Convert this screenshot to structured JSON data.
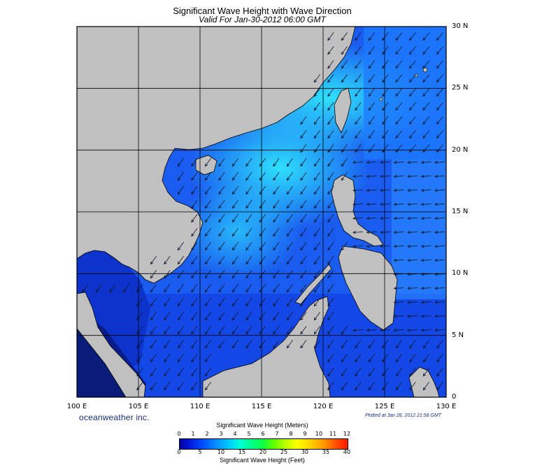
{
  "header": {
    "title": "Significant Wave Height with Wave Direction",
    "subtitle": "Valid For Jan-30-2012 06:00 GMT"
  },
  "map": {
    "lon_range": [
      100,
      130
    ],
    "lat_range": [
      0,
      30
    ],
    "lat_labels": [
      "30 N",
      "25 N",
      "20 N",
      "15 N",
      "10 N",
      "5 N",
      "0"
    ],
    "lon_labels": [
      "100 E",
      "105 E",
      "110 E",
      "115 E",
      "120 E",
      "125 E",
      "130 E"
    ],
    "land_color": "#c0c0c0",
    "grid_color": "#000000",
    "arrow_color": "#101830"
  },
  "footer": {
    "brand": "oceanweather inc.",
    "plotted": "Plotted at Jan 28, 2012 21:58 GMT"
  },
  "legend": {
    "title_meters": "Significant Wave Height (Meters)",
    "title_feet": "Significant Wave Height (Feet)",
    "meters_ticks": [
      "0",
      "1",
      "2",
      "3",
      "4",
      "5",
      "6",
      "7",
      "8",
      "9",
      "10",
      "11",
      "12"
    ],
    "feet_ticks": [
      "0",
      "5",
      "10",
      "15",
      "20",
      "25",
      "30",
      "35",
      "40"
    ]
  }
}
